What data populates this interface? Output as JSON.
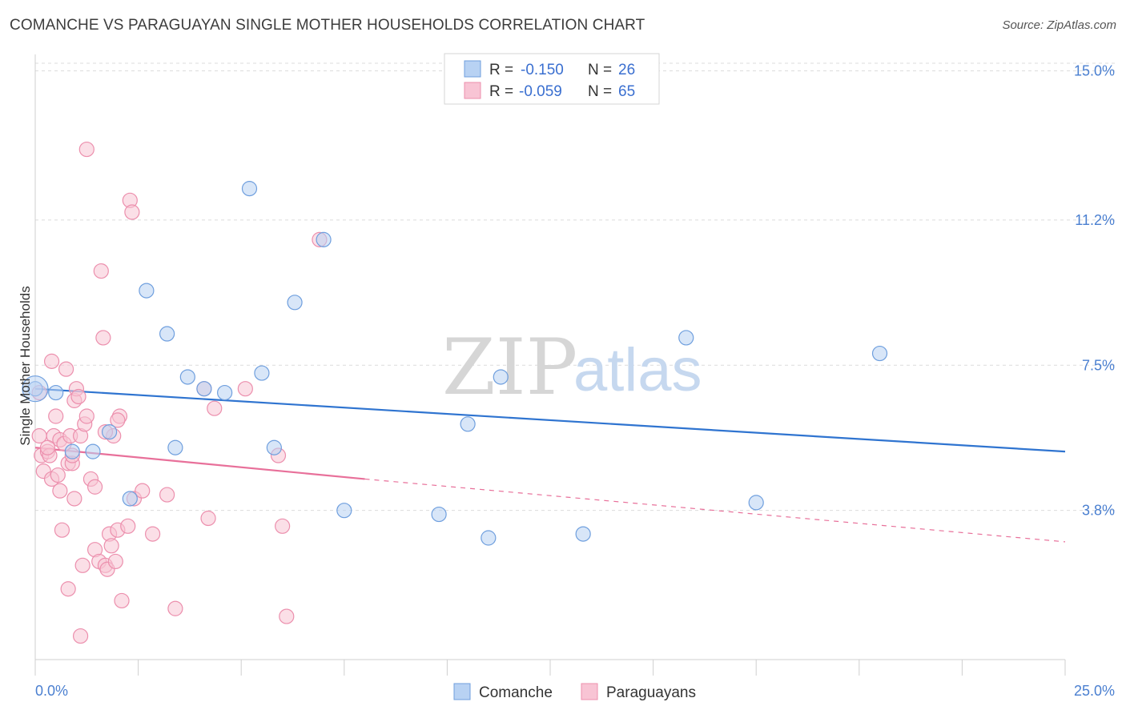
{
  "title": "COMANCHE VS PARAGUAYAN SINGLE MOTHER HOUSEHOLDS CORRELATION CHART",
  "source": "Source: ZipAtlas.com",
  "watermark": {
    "zip": "ZIP",
    "atlas": "atlas"
  },
  "colors": {
    "comanche_fill": "#b8d2f3",
    "comanche_stroke": "#6f9fde",
    "comanche_line": "#2f74d0",
    "paraguayan_fill": "#f8c4d4",
    "paraguayan_stroke": "#ec8fad",
    "paraguayan_line": "#e8709a",
    "grid": "#dcdcdc",
    "tick_label": "#4a7fd0"
  },
  "legend": {
    "rows": [
      {
        "r_label": "R =",
        "r_value": "-0.150",
        "n_label": "N =",
        "n_value": "26"
      },
      {
        "r_label": "R =",
        "r_value": "-0.059",
        "n_label": "N =",
        "n_value": "65"
      }
    ]
  },
  "chart_data": {
    "type": "scatter",
    "ylabel": "Single Mother Households",
    "xlim": [
      0,
      25
    ],
    "ylim": [
      0,
      15.5
    ],
    "x_ticks": [
      {
        "value": 0,
        "label": "0.0%"
      },
      {
        "value": 25,
        "label": "25.0%"
      }
    ],
    "y_ticks": [
      {
        "value": 3.8,
        "label": "3.8%"
      },
      {
        "value": 7.5,
        "label": "7.5%"
      },
      {
        "value": 11.2,
        "label": "11.2%"
      },
      {
        "value": 15.0,
        "label": "15.0%"
      }
    ],
    "grid": true,
    "legend_position": "top-center",
    "series": [
      {
        "name": "Comanche",
        "points": [
          [
            0.0,
            6.9
          ],
          [
            0.5,
            6.8
          ],
          [
            0.9,
            5.3
          ],
          [
            1.4,
            5.3
          ],
          [
            1.8,
            5.8
          ],
          [
            2.3,
            4.1
          ],
          [
            2.7,
            9.4
          ],
          [
            3.2,
            8.3
          ],
          [
            3.4,
            5.4
          ],
          [
            3.7,
            7.2
          ],
          [
            4.1,
            6.9
          ],
          [
            4.6,
            6.8
          ],
          [
            5.2,
            12.0
          ],
          [
            5.5,
            7.3
          ],
          [
            5.8,
            5.4
          ],
          [
            6.3,
            9.1
          ],
          [
            7.0,
            10.7
          ],
          [
            7.5,
            3.8
          ],
          [
            9.8,
            3.7
          ],
          [
            10.5,
            6.0
          ],
          [
            11.0,
            3.1
          ],
          [
            11.3,
            7.2
          ],
          [
            13.3,
            3.2
          ],
          [
            15.8,
            8.2
          ],
          [
            17.5,
            4.0
          ],
          [
            20.5,
            7.8
          ]
        ],
        "trend": {
          "x": [
            0,
            25
          ],
          "y": [
            6.9,
            5.3
          ]
        }
      },
      {
        "name": "Paraguayans",
        "points": [
          [
            0.1,
            6.8
          ],
          [
            0.1,
            5.7
          ],
          [
            0.15,
            5.2
          ],
          [
            0.2,
            4.8
          ],
          [
            0.3,
            5.3
          ],
          [
            0.35,
            5.2
          ],
          [
            0.4,
            4.6
          ],
          [
            0.4,
            7.6
          ],
          [
            0.45,
            5.7
          ],
          [
            0.5,
            6.2
          ],
          [
            0.55,
            4.7
          ],
          [
            0.6,
            5.6
          ],
          [
            0.6,
            4.3
          ],
          [
            0.65,
            3.3
          ],
          [
            0.7,
            5.5
          ],
          [
            0.75,
            7.4
          ],
          [
            0.8,
            5.0
          ],
          [
            0.8,
            1.8
          ],
          [
            0.85,
            5.7
          ],
          [
            0.9,
            5.0
          ],
          [
            0.95,
            6.6
          ],
          [
            0.95,
            4.1
          ],
          [
            1.0,
            6.9
          ],
          [
            1.05,
            6.7
          ],
          [
            1.1,
            5.7
          ],
          [
            1.1,
            0.6
          ],
          [
            1.15,
            2.4
          ],
          [
            1.2,
            6.0
          ],
          [
            1.25,
            13.0
          ],
          [
            1.25,
            6.2
          ],
          [
            1.35,
            4.6
          ],
          [
            1.45,
            2.8
          ],
          [
            1.55,
            2.5
          ],
          [
            1.6,
            9.9
          ],
          [
            1.65,
            8.2
          ],
          [
            1.7,
            2.4
          ],
          [
            1.75,
            2.3
          ],
          [
            1.8,
            3.2
          ],
          [
            1.85,
            2.9
          ],
          [
            1.9,
            5.7
          ],
          [
            1.95,
            2.5
          ],
          [
            2.0,
            3.3
          ],
          [
            2.05,
            6.2
          ],
          [
            2.1,
            1.5
          ],
          [
            2.25,
            3.4
          ],
          [
            2.3,
            11.7
          ],
          [
            2.35,
            11.4
          ],
          [
            2.4,
            4.1
          ],
          [
            2.6,
            4.3
          ],
          [
            2.85,
            3.2
          ],
          [
            3.2,
            4.2
          ],
          [
            3.4,
            1.3
          ],
          [
            4.1,
            6.9
          ],
          [
            4.2,
            3.6
          ],
          [
            4.35,
            6.4
          ],
          [
            5.1,
            6.9
          ],
          [
            5.9,
            5.2
          ],
          [
            6.0,
            3.4
          ],
          [
            6.1,
            1.1
          ],
          [
            6.9,
            10.7
          ],
          [
            0.3,
            5.4
          ],
          [
            0.9,
            5.2
          ],
          [
            1.45,
            4.4
          ],
          [
            1.7,
            5.8
          ],
          [
            2.0,
            6.1
          ]
        ],
        "trend": {
          "x": [
            0,
            8
          ],
          "y": [
            5.4,
            4.6
          ]
        },
        "trend_extension": {
          "x": [
            8,
            25
          ],
          "y": [
            4.6,
            3.0
          ]
        }
      }
    ]
  }
}
